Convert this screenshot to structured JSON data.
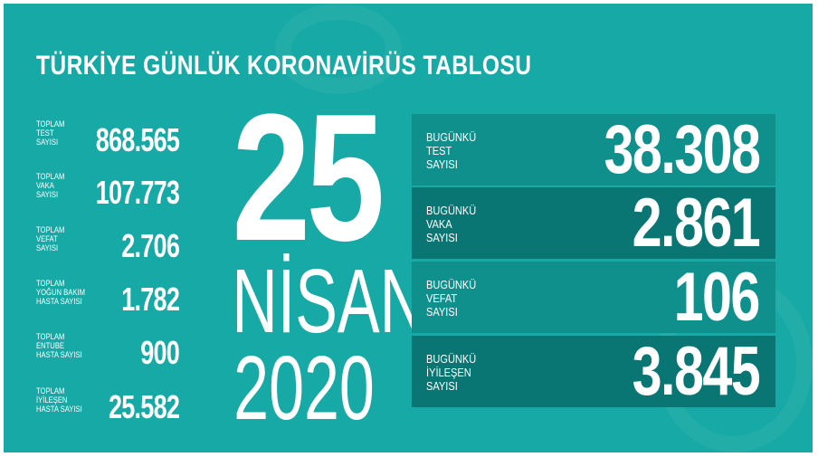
{
  "title": "TÜRKİYE GÜNLÜK KORONAVİRÜS TABLOSU",
  "colors": {
    "background": "#17a9a5",
    "row_light": "#0f908c",
    "row_dark": "#0a7673"
  },
  "totals": [
    {
      "label": [
        "TOPLAM",
        "TEST",
        "SAYISI"
      ],
      "value": "868.565"
    },
    {
      "label": [
        "TOPLAM",
        "VAKA",
        "SAYISI"
      ],
      "value": "107.773"
    },
    {
      "label": [
        "TOPLAM",
        "VEFAT",
        "SAYISI"
      ],
      "value": "2.706"
    },
    {
      "label": [
        "TOPLAM",
        "YOĞUN BAKIM",
        "HASTA SAYISI"
      ],
      "value": "1.782"
    },
    {
      "label": [
        "TOPLAM",
        "ENTUBE",
        "HASTA SAYISI"
      ],
      "value": "900"
    },
    {
      "label": [
        "TOPLAM",
        "İYİLEŞEN",
        "HASTA SAYISI"
      ],
      "value": "25.582"
    }
  ],
  "date": {
    "day": "25",
    "month": "NİSAN",
    "year": "2020"
  },
  "daily": [
    {
      "label": [
        "BUGÜNKÜ",
        "TEST",
        "SAYISI"
      ],
      "value": "38.308"
    },
    {
      "label": [
        "BUGÜNKÜ",
        "VAKA",
        "SAYISI"
      ],
      "value": "2.861"
    },
    {
      "label": [
        "BUGÜNKÜ",
        "VEFAT",
        "SAYISI"
      ],
      "value": "106"
    },
    {
      "label": [
        "BUGÜNKÜ",
        "İYİLEŞEN",
        "SAYISI"
      ],
      "value": "3.845"
    }
  ]
}
